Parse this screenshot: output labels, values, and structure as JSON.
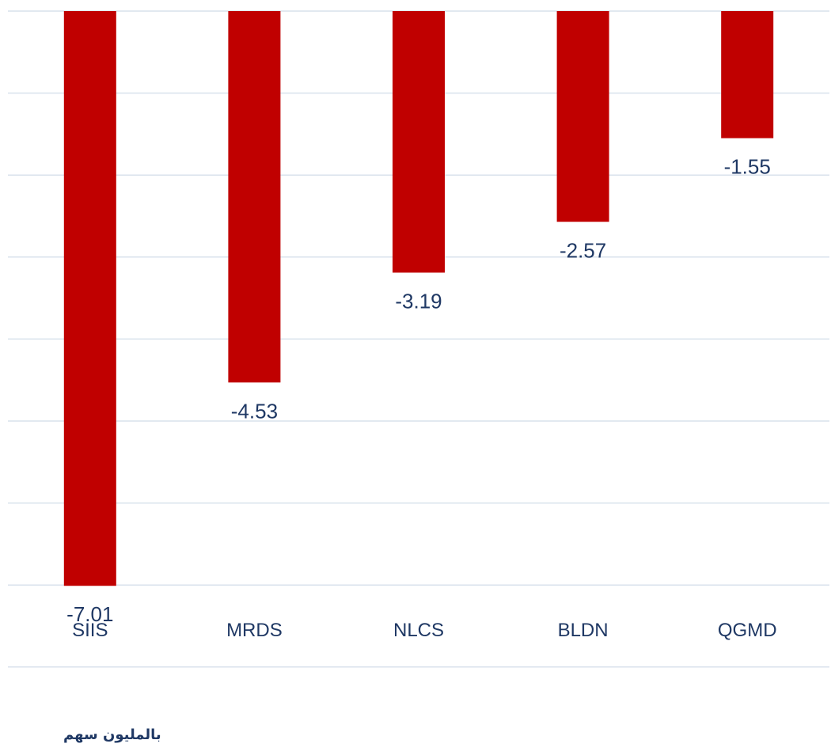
{
  "chart_data": {
    "type": "bar",
    "title": "",
    "xlabel": "",
    "ylabel": "",
    "unit_label": "بالمليون سهم",
    "categories": [
      "SIIS",
      "MRDS",
      "NLCS",
      "BLDN",
      "QGMD"
    ],
    "values": [
      -7.01,
      -4.53,
      -3.19,
      -2.57,
      -1.55
    ],
    "data_labels": [
      "-7.01",
      "-4.53",
      "-3.19",
      "-2.57",
      "-1.55"
    ],
    "ylim": [
      -8,
      0
    ],
    "grid": true,
    "legend": "none"
  },
  "colors": {
    "bar": "#C00000",
    "data_label": "#1F3864",
    "axis_label": "#1F3864",
    "gridline": "#D9E2EC",
    "unit_label": "#1F3864"
  }
}
